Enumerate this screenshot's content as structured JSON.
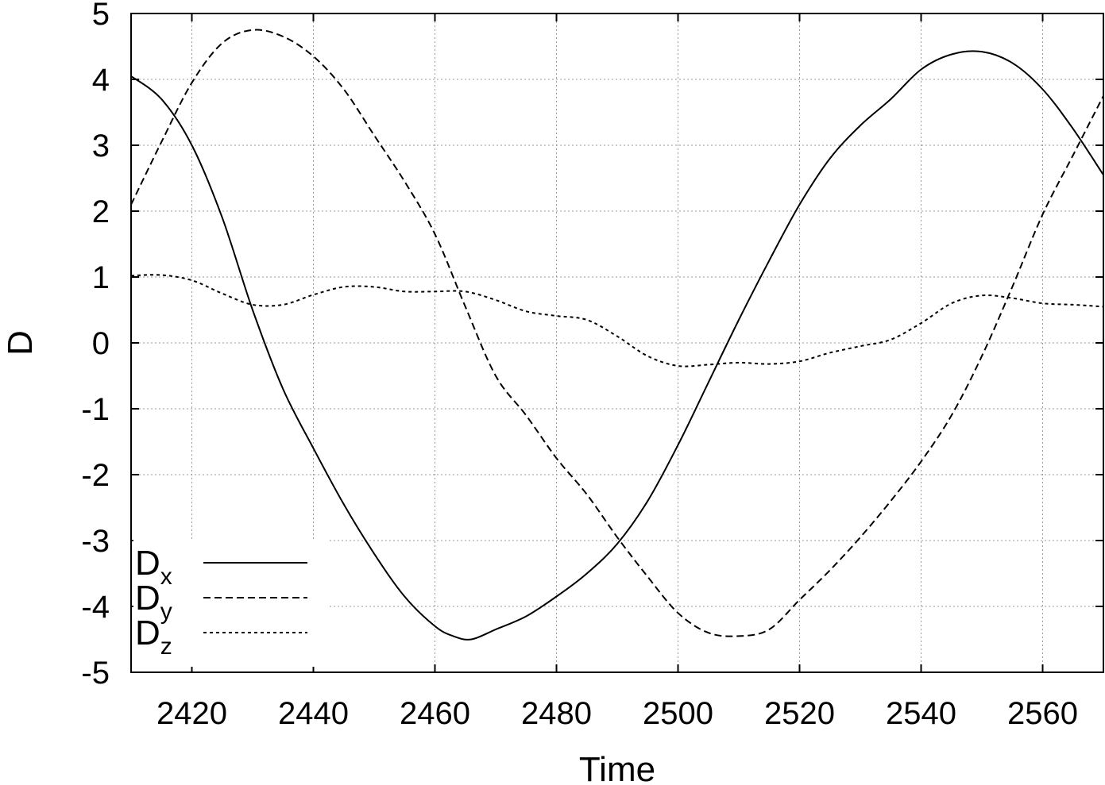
{
  "chart_data": {
    "type": "line",
    "xlabel": "Time",
    "ylabel": "D",
    "xlim": [
      2410,
      2570
    ],
    "ylim": [
      -5,
      5
    ],
    "xticks": [
      2420,
      2440,
      2460,
      2480,
      2500,
      2520,
      2540,
      2560
    ],
    "yticks": [
      5,
      4,
      3,
      2,
      1,
      0,
      -1,
      -2,
      -3,
      -4,
      -5
    ],
    "grid": true,
    "legend_position": "bottom-left",
    "series": [
      {
        "name": "D",
        "subscript": "x",
        "style": "solid",
        "color": "#000000",
        "x": [
          2410,
          2415,
          2420,
          2425,
          2430,
          2435,
          2440,
          2445,
          2450,
          2455,
          2460,
          2463,
          2466,
          2470,
          2475,
          2480,
          2485,
          2490,
          2495,
          2500,
          2505,
          2510,
          2515,
          2520,
          2525,
          2530,
          2535,
          2540,
          2545,
          2550,
          2555,
          2560,
          2565,
          2570
        ],
        "values": [
          4.05,
          3.7,
          3.0,
          1.9,
          0.5,
          -0.7,
          -1.6,
          -2.45,
          -3.2,
          -3.85,
          -4.3,
          -4.45,
          -4.5,
          -4.35,
          -4.15,
          -3.85,
          -3.5,
          -3.05,
          -2.4,
          -1.55,
          -0.6,
          0.35,
          1.25,
          2.1,
          2.8,
          3.3,
          3.7,
          4.15,
          4.38,
          4.42,
          4.25,
          3.85,
          3.25,
          2.55
        ]
      },
      {
        "name": "D",
        "subscript": "y",
        "style": "dashed",
        "color": "#000000",
        "x": [
          2410,
          2415,
          2420,
          2425,
          2430,
          2435,
          2440,
          2445,
          2450,
          2455,
          2460,
          2465,
          2470,
          2475,
          2480,
          2485,
          2490,
          2495,
          2500,
          2505,
          2510,
          2515,
          2520,
          2525,
          2530,
          2535,
          2540,
          2545,
          2550,
          2555,
          2560,
          2565,
          2570
        ],
        "values": [
          2.1,
          3.05,
          3.95,
          4.55,
          4.75,
          4.65,
          4.35,
          3.85,
          3.15,
          2.45,
          1.65,
          0.55,
          -0.5,
          -1.1,
          -1.75,
          -2.3,
          -2.95,
          -3.55,
          -4.1,
          -4.4,
          -4.45,
          -4.35,
          -3.9,
          -3.45,
          -2.95,
          -2.4,
          -1.8,
          -1.1,
          -0.2,
          0.85,
          1.95,
          2.85,
          3.75
        ]
      },
      {
        "name": "D",
        "subscript": "z",
        "style": "dotted",
        "color": "#000000",
        "x": [
          2410,
          2415,
          2420,
          2425,
          2430,
          2435,
          2440,
          2445,
          2450,
          2455,
          2460,
          2465,
          2470,
          2475,
          2480,
          2485,
          2490,
          2495,
          2500,
          2505,
          2510,
          2515,
          2520,
          2525,
          2530,
          2535,
          2540,
          2545,
          2550,
          2555,
          2560,
          2565,
          2570
        ],
        "values": [
          1.02,
          1.03,
          0.95,
          0.75,
          0.58,
          0.58,
          0.73,
          0.85,
          0.85,
          0.78,
          0.78,
          0.78,
          0.65,
          0.48,
          0.41,
          0.35,
          0.1,
          -0.2,
          -0.35,
          -0.33,
          -0.3,
          -0.32,
          -0.28,
          -0.15,
          -0.05,
          0.05,
          0.3,
          0.6,
          0.72,
          0.68,
          0.6,
          0.58,
          0.55
        ]
      }
    ]
  }
}
